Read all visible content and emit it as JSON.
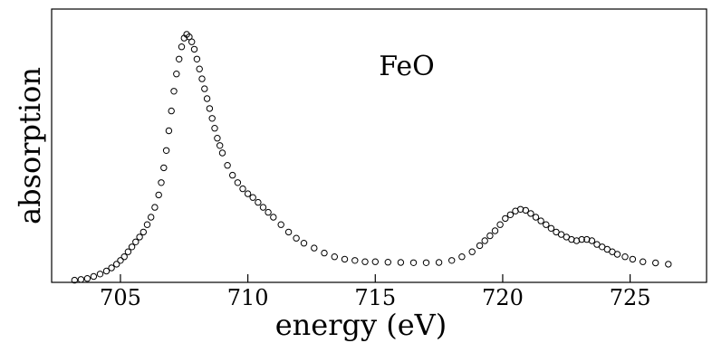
{
  "chart_data": {
    "type": "scatter",
    "title": "",
    "xlabel": "energy (eV)",
    "ylabel": "absorption",
    "annotation": "FeO",
    "xlim": [
      702.3,
      728.0
    ],
    "ylim": [
      0.0,
      1.0
    ],
    "xticks": [
      705,
      710,
      715,
      720,
      725
    ],
    "xtick_labels": [
      "705",
      "710",
      "715",
      "720",
      "725"
    ],
    "grid": false,
    "yticks_shown": false,
    "marker": "open-circle",
    "series": [
      {
        "x": [
          703.2,
          703.45,
          703.7,
          703.95,
          704.2,
          704.45,
          704.65,
          704.85,
          705.0,
          705.15,
          705.3,
          705.45,
          705.6,
          705.75,
          705.9,
          706.05,
          706.2,
          706.35,
          706.5,
          706.6,
          706.7,
          706.8,
          706.9,
          707.0,
          707.1,
          707.2,
          707.3,
          707.4,
          707.5,
          707.6,
          707.7,
          707.8,
          707.9,
          708.0,
          708.1,
          708.2,
          708.3,
          708.4,
          708.5,
          708.6,
          708.7,
          708.8,
          708.9,
          709.0,
          709.2,
          709.4,
          709.6,
          709.8,
          710.0,
          710.2,
          710.4,
          710.6,
          710.8,
          711.0,
          711.3,
          711.6,
          711.9,
          712.2,
          712.6,
          713.0,
          713.4,
          713.8,
          714.2,
          714.6,
          715.0,
          715.5,
          716.0,
          716.5,
          717.0,
          717.5,
          718.0,
          718.4,
          718.8,
          719.1,
          719.3,
          719.5,
          719.7,
          719.9,
          720.1,
          720.3,
          720.5,
          720.7,
          720.9,
          721.1,
          721.3,
          721.5,
          721.7,
          721.9,
          722.1,
          722.3,
          722.5,
          722.7,
          722.9,
          723.1,
          723.3,
          723.5,
          723.7,
          723.9,
          724.1,
          724.3,
          724.5,
          724.8,
          725.1,
          725.5,
          726.0,
          726.5
        ],
        "y": [
          0.005,
          0.008,
          0.012,
          0.02,
          0.03,
          0.042,
          0.055,
          0.07,
          0.085,
          0.1,
          0.12,
          0.14,
          0.16,
          0.18,
          0.2,
          0.23,
          0.26,
          0.3,
          0.35,
          0.4,
          0.46,
          0.53,
          0.61,
          0.69,
          0.77,
          0.84,
          0.9,
          0.95,
          0.985,
          1.0,
          0.99,
          0.97,
          0.94,
          0.9,
          0.86,
          0.82,
          0.78,
          0.74,
          0.7,
          0.66,
          0.62,
          0.58,
          0.55,
          0.52,
          0.47,
          0.43,
          0.4,
          0.375,
          0.355,
          0.34,
          0.32,
          0.3,
          0.28,
          0.26,
          0.23,
          0.2,
          0.175,
          0.155,
          0.135,
          0.115,
          0.1,
          0.09,
          0.085,
          0.08,
          0.08,
          0.078,
          0.077,
          0.076,
          0.076,
          0.077,
          0.085,
          0.1,
          0.12,
          0.145,
          0.165,
          0.185,
          0.205,
          0.23,
          0.255,
          0.27,
          0.285,
          0.292,
          0.288,
          0.275,
          0.26,
          0.245,
          0.23,
          0.215,
          0.2,
          0.19,
          0.18,
          0.17,
          0.165,
          0.17,
          0.17,
          0.165,
          0.15,
          0.14,
          0.13,
          0.12,
          0.11,
          0.1,
          0.09,
          0.08,
          0.075,
          0.07
        ]
      }
    ]
  }
}
